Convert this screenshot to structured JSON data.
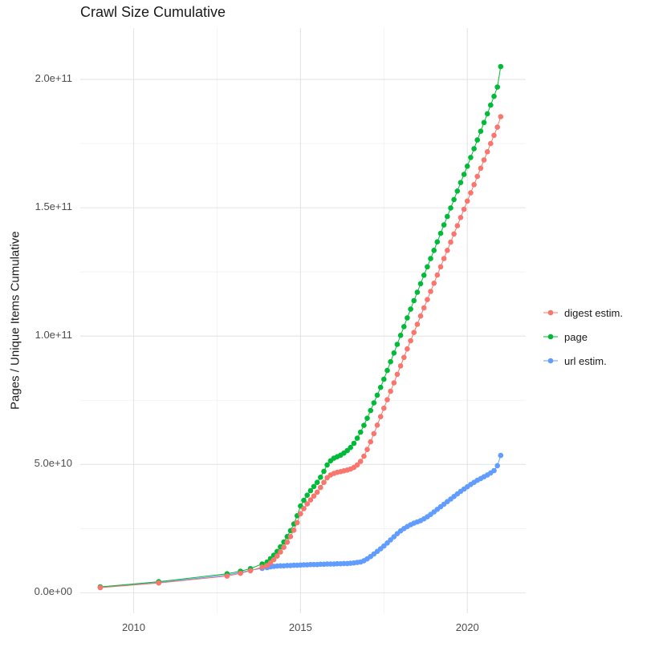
{
  "chart_data": {
    "type": "scatter",
    "title": "Crawl Size Cumulative",
    "xlabel": "",
    "ylabel": "Pages / Unique Items Cumulative",
    "legend_position": "right",
    "grid": true,
    "y_unit": "pages (1 unit = 1e9); axis labels shown in scientific notation",
    "x_domain": [
      2008.4,
      2021.75
    ],
    "y_domain": [
      -8,
      220
    ],
    "x_ticks": [
      {
        "value": 2010,
        "label": "2010"
      },
      {
        "value": 2015,
        "label": "2015"
      },
      {
        "value": 2020,
        "label": "2020"
      }
    ],
    "x_minor_ticks": [
      2012.5,
      2017.5
    ],
    "y_ticks": [
      {
        "value": 0,
        "label": "0.0e+00"
      },
      {
        "value": 50,
        "label": "5.0e+10"
      },
      {
        "value": 100,
        "label": "1.0e+11"
      },
      {
        "value": 150,
        "label": "1.5e+11"
      },
      {
        "value": 200,
        "label": "2.0e+11"
      }
    ],
    "y_minor_ticks": [
      25,
      75,
      125,
      175
    ],
    "colors": {
      "background": "#FFFFFF",
      "grid_major": "#E4E4E4",
      "grid_minor": "#F1F1F1",
      "tick_label": "#4D4D4D",
      "text": "#1A1A1A"
    },
    "series": [
      {
        "name": "digest estim.",
        "color": "#F8766D",
        "points": [
          [
            2009.0,
            2.0
          ],
          [
            2010.75,
            3.8
          ],
          [
            2012.8,
            6.5
          ],
          [
            2013.2,
            7.6
          ],
          [
            2013.5,
            8.6
          ],
          [
            2013.85,
            10.0
          ],
          [
            2014.0,
            10.6
          ],
          [
            2014.1,
            11.7
          ],
          [
            2014.2,
            12.9
          ],
          [
            2014.3,
            14.3
          ],
          [
            2014.4,
            15.9
          ],
          [
            2014.5,
            17.7
          ],
          [
            2014.6,
            19.7
          ],
          [
            2014.7,
            21.9
          ],
          [
            2014.8,
            24.4
          ],
          [
            2014.9,
            27.3
          ],
          [
            2015.0,
            30.8
          ],
          [
            2015.1,
            32.8
          ],
          [
            2015.2,
            34.6
          ],
          [
            2015.3,
            36.2
          ],
          [
            2015.4,
            37.7
          ],
          [
            2015.5,
            39.2
          ],
          [
            2015.6,
            41.0
          ],
          [
            2015.7,
            43.0
          ],
          [
            2015.8,
            44.8
          ],
          [
            2015.9,
            45.9
          ],
          [
            2016.0,
            46.5
          ],
          [
            2016.1,
            46.9
          ],
          [
            2016.2,
            47.2
          ],
          [
            2016.3,
            47.5
          ],
          [
            2016.4,
            47.8
          ],
          [
            2016.5,
            48.2
          ],
          [
            2016.6,
            48.8
          ],
          [
            2016.7,
            49.8
          ],
          [
            2016.8,
            51.2
          ],
          [
            2016.9,
            53.2
          ],
          [
            2017.0,
            55.8
          ],
          [
            2017.1,
            58.8
          ],
          [
            2017.2,
            62.0
          ],
          [
            2017.3,
            65.3
          ],
          [
            2017.4,
            68.6
          ],
          [
            2017.5,
            71.9
          ],
          [
            2017.6,
            75.2
          ],
          [
            2017.7,
            78.5
          ],
          [
            2017.8,
            81.8
          ],
          [
            2017.9,
            85.1
          ],
          [
            2018.0,
            88.4
          ],
          [
            2018.1,
            91.7
          ],
          [
            2018.2,
            95.0
          ],
          [
            2018.3,
            98.2
          ],
          [
            2018.4,
            101.4
          ],
          [
            2018.5,
            104.6
          ],
          [
            2018.6,
            107.8
          ],
          [
            2018.7,
            111.0
          ],
          [
            2018.8,
            114.2
          ],
          [
            2018.9,
            117.4
          ],
          [
            2019.0,
            120.6
          ],
          [
            2019.1,
            123.8
          ],
          [
            2019.2,
            127.0
          ],
          [
            2019.3,
            130.2
          ],
          [
            2019.4,
            133.4
          ],
          [
            2019.5,
            136.6
          ],
          [
            2019.6,
            139.8
          ],
          [
            2019.7,
            143.0
          ],
          [
            2019.8,
            146.2
          ],
          [
            2019.9,
            149.4
          ],
          [
            2020.0,
            152.6
          ],
          [
            2020.1,
            155.8
          ],
          [
            2020.2,
            159.0
          ],
          [
            2020.3,
            162.2
          ],
          [
            2020.4,
            165.4
          ],
          [
            2020.5,
            168.6
          ],
          [
            2020.6,
            171.8
          ],
          [
            2020.7,
            175.0
          ],
          [
            2020.8,
            178.2
          ],
          [
            2020.9,
            181.4
          ],
          [
            2021.0,
            185.5
          ]
        ]
      },
      {
        "name": "page",
        "color": "#00BA38",
        "points": [
          [
            2009.0,
            2.3
          ],
          [
            2010.75,
            4.3
          ],
          [
            2012.8,
            7.4
          ],
          [
            2013.2,
            8.4
          ],
          [
            2013.5,
            9.4
          ],
          [
            2013.85,
            11.2
          ],
          [
            2014.0,
            12.0
          ],
          [
            2014.1,
            13.3
          ],
          [
            2014.2,
            14.6
          ],
          [
            2014.3,
            16.1
          ],
          [
            2014.4,
            17.9
          ],
          [
            2014.5,
            19.8
          ],
          [
            2014.6,
            21.9
          ],
          [
            2014.7,
            24.2
          ],
          [
            2014.8,
            26.8
          ],
          [
            2014.9,
            30.0
          ],
          [
            2015.0,
            33.8
          ],
          [
            2015.1,
            36.0
          ],
          [
            2015.2,
            38.0
          ],
          [
            2015.3,
            39.8
          ],
          [
            2015.4,
            41.4
          ],
          [
            2015.5,
            43.0
          ],
          [
            2015.6,
            45.0
          ],
          [
            2015.7,
            47.3
          ],
          [
            2015.8,
            49.8
          ],
          [
            2015.9,
            51.4
          ],
          [
            2016.0,
            52.4
          ],
          [
            2016.1,
            53.0
          ],
          [
            2016.2,
            53.6
          ],
          [
            2016.3,
            54.4
          ],
          [
            2016.4,
            55.4
          ],
          [
            2016.5,
            56.6
          ],
          [
            2016.6,
            58.2
          ],
          [
            2016.7,
            60.2
          ],
          [
            2016.8,
            62.6
          ],
          [
            2016.9,
            65.2
          ],
          [
            2017.0,
            68.0
          ],
          [
            2017.1,
            71.0
          ],
          [
            2017.2,
            74.0
          ],
          [
            2017.3,
            77.0
          ],
          [
            2017.4,
            80.0
          ],
          [
            2017.5,
            83.2
          ],
          [
            2017.6,
            86.6
          ],
          [
            2017.7,
            90.0
          ],
          [
            2017.8,
            93.4
          ],
          [
            2017.9,
            96.8
          ],
          [
            2018.0,
            100.3
          ],
          [
            2018.1,
            103.7
          ],
          [
            2018.2,
            107.1
          ],
          [
            2018.3,
            110.5
          ],
          [
            2018.4,
            113.8
          ],
          [
            2018.5,
            117.1
          ],
          [
            2018.6,
            120.4
          ],
          [
            2018.7,
            123.7
          ],
          [
            2018.8,
            127.0
          ],
          [
            2018.9,
            130.2
          ],
          [
            2019.0,
            133.4
          ],
          [
            2019.1,
            136.7
          ],
          [
            2019.2,
            140.0
          ],
          [
            2019.3,
            143.3
          ],
          [
            2019.4,
            146.6
          ],
          [
            2019.5,
            149.9
          ],
          [
            2019.6,
            153.2
          ],
          [
            2019.7,
            156.5
          ],
          [
            2019.8,
            159.8
          ],
          [
            2019.9,
            163.0
          ],
          [
            2020.0,
            166.2
          ],
          [
            2020.1,
            169.6
          ],
          [
            2020.2,
            173.0
          ],
          [
            2020.3,
            176.4
          ],
          [
            2020.4,
            179.8
          ],
          [
            2020.5,
            183.2
          ],
          [
            2020.6,
            186.6
          ],
          [
            2020.7,
            190.0
          ],
          [
            2020.8,
            193.4
          ],
          [
            2020.9,
            197.0
          ],
          [
            2021.0,
            205.0
          ]
        ]
      },
      {
        "name": "url estim.",
        "color": "#619CFF",
        "points": [
          [
            2009.0,
            2.1
          ],
          [
            2010.75,
            4.0
          ],
          [
            2012.8,
            6.9
          ],
          [
            2013.2,
            7.9
          ],
          [
            2013.5,
            8.8
          ],
          [
            2013.85,
            9.5
          ],
          [
            2014.0,
            9.8
          ],
          [
            2014.1,
            10.1
          ],
          [
            2014.2,
            10.3
          ],
          [
            2014.3,
            10.4
          ],
          [
            2014.4,
            10.5
          ],
          [
            2014.5,
            10.5
          ],
          [
            2014.6,
            10.6
          ],
          [
            2014.7,
            10.6
          ],
          [
            2014.8,
            10.7
          ],
          [
            2014.9,
            10.7
          ],
          [
            2015.0,
            10.8
          ],
          [
            2015.1,
            10.9
          ],
          [
            2015.2,
            10.9
          ],
          [
            2015.3,
            11.0
          ],
          [
            2015.4,
            11.0
          ],
          [
            2015.5,
            11.0
          ],
          [
            2015.6,
            11.1
          ],
          [
            2015.7,
            11.1
          ],
          [
            2015.8,
            11.2
          ],
          [
            2015.9,
            11.2
          ],
          [
            2016.0,
            11.2
          ],
          [
            2016.1,
            11.3
          ],
          [
            2016.2,
            11.3
          ],
          [
            2016.3,
            11.4
          ],
          [
            2016.4,
            11.4
          ],
          [
            2016.5,
            11.5
          ],
          [
            2016.6,
            11.6
          ],
          [
            2016.7,
            11.8
          ],
          [
            2016.8,
            12.0
          ],
          [
            2016.9,
            12.5
          ],
          [
            2017.0,
            13.2
          ],
          [
            2017.1,
            14.1
          ],
          [
            2017.2,
            15.1
          ],
          [
            2017.3,
            16.1
          ],
          [
            2017.4,
            17.1
          ],
          [
            2017.5,
            18.2
          ],
          [
            2017.6,
            19.4
          ],
          [
            2017.7,
            20.6
          ],
          [
            2017.8,
            21.8
          ],
          [
            2017.9,
            23.0
          ],
          [
            2018.0,
            24.1
          ],
          [
            2018.1,
            25.0
          ],
          [
            2018.2,
            25.8
          ],
          [
            2018.3,
            26.5
          ],
          [
            2018.4,
            27.1
          ],
          [
            2018.5,
            27.6
          ],
          [
            2018.6,
            28.1
          ],
          [
            2018.7,
            28.8
          ],
          [
            2018.8,
            29.6
          ],
          [
            2018.9,
            30.5
          ],
          [
            2019.0,
            31.5
          ],
          [
            2019.1,
            32.5
          ],
          [
            2019.2,
            33.5
          ],
          [
            2019.3,
            34.5
          ],
          [
            2019.4,
            35.5
          ],
          [
            2019.5,
            36.5
          ],
          [
            2019.6,
            37.5
          ],
          [
            2019.7,
            38.5
          ],
          [
            2019.8,
            39.5
          ],
          [
            2019.9,
            40.4
          ],
          [
            2020.0,
            41.3
          ],
          [
            2020.1,
            42.2
          ],
          [
            2020.2,
            43.0
          ],
          [
            2020.3,
            43.8
          ],
          [
            2020.4,
            44.5
          ],
          [
            2020.5,
            45.2
          ],
          [
            2020.6,
            45.9
          ],
          [
            2020.7,
            46.7
          ],
          [
            2020.8,
            47.6
          ],
          [
            2020.9,
            49.5
          ],
          [
            2021.0,
            53.5
          ]
        ]
      }
    ]
  }
}
